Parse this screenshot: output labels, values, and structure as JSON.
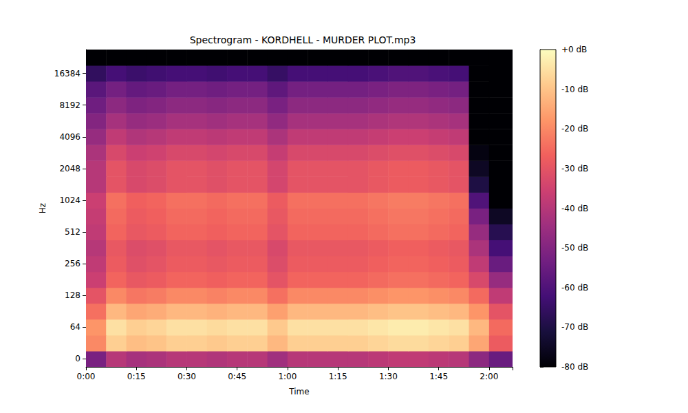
{
  "chart_data": {
    "type": "heatmap",
    "title": "Spectrogram - KORDHELL - MURDER PLOT.mp3",
    "x_label": "Time",
    "y_label": "Hz",
    "xlim": [
      0,
      127
    ],
    "xticks": [
      {
        "value": 0,
        "label": "0:00"
      },
      {
        "value": 15,
        "label": "0:15"
      },
      {
        "value": 30,
        "label": "0:30"
      },
      {
        "value": 45,
        "label": "0:45"
      },
      {
        "value": 60,
        "label": "1:00"
      },
      {
        "value": 75,
        "label": "1:15"
      },
      {
        "value": 90,
        "label": "1:30"
      },
      {
        "value": 105,
        "label": "1:45"
      },
      {
        "value": 120,
        "label": "2:00"
      }
    ],
    "bins": [
      0,
      6,
      12,
      18,
      24,
      30,
      36,
      42,
      48,
      54,
      60,
      66,
      72,
      78,
      84,
      90,
      96,
      102,
      108,
      114,
      120,
      127
    ],
    "categories": [
      "0",
      null,
      "64",
      null,
      "128",
      null,
      "256",
      null,
      "512",
      null,
      "1024",
      null,
      "2048",
      null,
      "4096",
      null,
      "8192",
      null,
      "16384",
      null
    ],
    "cells": [
      [
        -52,
        -40,
        -43,
        -42,
        -40,
        -40,
        -41,
        -40,
        -40,
        -44,
        -40,
        -40,
        -40,
        -40,
        -39,
        -38,
        -38,
        -39,
        -40,
        -48,
        -55
      ],
      [
        -20,
        -8,
        -11,
        -10,
        -8,
        -8,
        -9,
        -8,
        -8,
        -12,
        -8,
        -8,
        -8,
        -8,
        -7,
        -6,
        -6,
        -7,
        -8,
        -15,
        -28
      ],
      [
        -18,
        -5,
        -8,
        -7,
        -5,
        -5,
        -6,
        -5,
        -5,
        -9,
        -5,
        -5,
        -5,
        -5,
        -4,
        -3,
        -3,
        -4,
        -5,
        -12,
        -25
      ],
      [
        -24,
        -12,
        -15,
        -14,
        -12,
        -12,
        -13,
        -12,
        -12,
        -16,
        -12,
        -12,
        -12,
        -12,
        -11,
        -10,
        -10,
        -11,
        -12,
        -18,
        -30
      ],
      [
        -30,
        -20,
        -23,
        -22,
        -20,
        -20,
        -21,
        -20,
        -20,
        -24,
        -20,
        -20,
        -20,
        -20,
        -19,
        -18,
        -18,
        -19,
        -20,
        -25,
        -38
      ],
      [
        -36,
        -26,
        -29,
        -28,
        -26,
        -26,
        -27,
        -26,
        -26,
        -30,
        -26,
        -26,
        -26,
        -26,
        -25,
        -24,
        -24,
        -25,
        -26,
        -33,
        -46
      ],
      [
        -38,
        -28,
        -31,
        -30,
        -28,
        -28,
        -29,
        -28,
        -28,
        -32,
        -28,
        -28,
        -28,
        -28,
        -27,
        -26,
        -26,
        -27,
        -28,
        -38,
        -55
      ],
      [
        -40,
        -29,
        -32,
        -31,
        -29,
        -29,
        -30,
        -29,
        -29,
        -33,
        -29,
        -29,
        -29,
        -29,
        -28,
        -27,
        -27,
        -28,
        -29,
        -42,
        -62
      ],
      [
        -38,
        -26,
        -29,
        -28,
        -26,
        -26,
        -27,
        -26,
        -26,
        -30,
        -26,
        -26,
        -26,
        -26,
        -25,
        -24,
        -24,
        -25,
        -26,
        -46,
        -68
      ],
      [
        -37,
        -25,
        -28,
        -27,
        -25,
        -25,
        -26,
        -25,
        -25,
        -29,
        -25,
        -25,
        -25,
        -25,
        -24,
        -23,
        -23,
        -24,
        -25,
        -52,
        -75
      ],
      [
        -36,
        -24,
        -27,
        -26,
        -24,
        -24,
        -25,
        -24,
        -24,
        -28,
        -24,
        -24,
        -24,
        -24,
        -23,
        -22,
        -22,
        -23,
        -24,
        -60,
        -80
      ],
      [
        -40,
        -30,
        -33,
        -32,
        -30,
        -30,
        -31,
        -30,
        -30,
        -34,
        -30,
        -30,
        -30,
        -30,
        -29,
        -28,
        -28,
        -29,
        -30,
        -70,
        -80
      ],
      [
        -40,
        -30,
        -33,
        -32,
        -30,
        -30,
        -31,
        -30,
        -30,
        -34,
        -30,
        -30,
        -30,
        -30,
        -29,
        -28,
        -28,
        -29,
        -30,
        -75,
        -80
      ],
      [
        -42,
        -33,
        -36,
        -35,
        -33,
        -33,
        -34,
        -33,
        -33,
        -37,
        -33,
        -33,
        -33,
        -33,
        -32,
        -31,
        -31,
        -32,
        -33,
        -78,
        -80
      ],
      [
        -46,
        -38,
        -41,
        -40,
        -38,
        -38,
        -39,
        -38,
        -38,
        -42,
        -38,
        -38,
        -38,
        -38,
        -37,
        -36,
        -36,
        -37,
        -38,
        -80,
        -80
      ],
      [
        -50,
        -43,
        -46,
        -45,
        -43,
        -43,
        -44,
        -43,
        -43,
        -47,
        -43,
        -43,
        -43,
        -43,
        -42,
        -41,
        -41,
        -42,
        -43,
        -80,
        -80
      ],
      [
        -54,
        -48,
        -51,
        -50,
        -48,
        -48,
        -49,
        -48,
        -48,
        -52,
        -48,
        -48,
        -48,
        -48,
        -47,
        -46,
        -46,
        -47,
        -48,
        -80,
        -80
      ],
      [
        -58,
        -53,
        -56,
        -55,
        -53,
        -53,
        -54,
        -53,
        -53,
        -57,
        -53,
        -53,
        -53,
        -53,
        -52,
        -51,
        -51,
        -52,
        -53,
        -80,
        -80
      ],
      [
        -66,
        -62,
        -64,
        -63,
        -62,
        -62,
        -63,
        -62,
        -62,
        -65,
        -62,
        -62,
        -62,
        -62,
        -61,
        -60,
        -60,
        -61,
        -62,
        -80,
        -80
      ],
      [
        -80,
        -80,
        -80,
        -80,
        -80,
        -80,
        -80,
        -80,
        -80,
        -80,
        -80,
        -80,
        -80,
        -80,
        -80,
        -80,
        -80,
        -80,
        -80,
        -80,
        -80
      ]
    ],
    "colorbar_range": [
      -80,
      0
    ],
    "colorbar_ticks": [
      {
        "value": 0,
        "label": "+0 dB"
      },
      {
        "value": -10,
        "label": "-10 dB"
      },
      {
        "value": -20,
        "label": "-20 dB"
      },
      {
        "value": -30,
        "label": "-30 dB"
      },
      {
        "value": -40,
        "label": "-40 dB"
      },
      {
        "value": -50,
        "label": "-50 dB"
      },
      {
        "value": -60,
        "label": "-60 dB"
      },
      {
        "value": -70,
        "label": "-70 dB"
      },
      {
        "value": -80,
        "label": "-80 dB"
      }
    ]
  }
}
